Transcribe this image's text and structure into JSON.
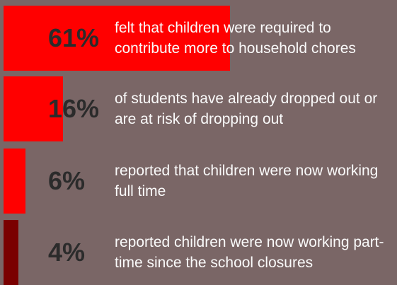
{
  "chart_data": {
    "type": "bar",
    "orientation": "horizontal",
    "unit": "%",
    "items": [
      {
        "label": "61%",
        "value": 61,
        "color": "#ff0000",
        "text": "felt that children were required to contribute more to household chores"
      },
      {
        "label": "16%",
        "value": 16,
        "color": "#ff0000",
        "text": "of students have already dropped out or are at risk of dropping out"
      },
      {
        "label": "6%",
        "value": 6,
        "color": "#ff0000",
        "text": "reported that children were now working full time"
      },
      {
        "label": "4%",
        "value": 4,
        "color": "#7a0000",
        "text": "reported children were now working part-time since the school closures"
      }
    ]
  }
}
